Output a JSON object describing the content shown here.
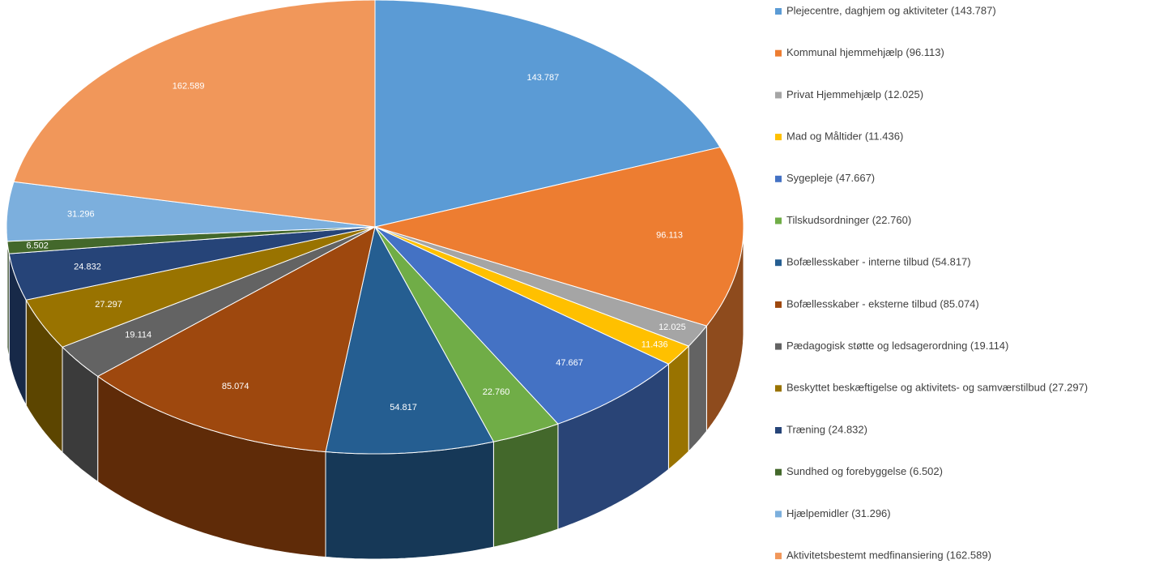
{
  "chart_data": {
    "type": "pie",
    "categories": [
      "Plejecentre, daghjem og aktiviteter (143.787)",
      "Kommunal hjemmehjælp (96.113)",
      "Privat Hjemmehjælp (12.025)",
      "Mad og Måltider (11.436)",
      "Sygepleje (47.667)",
      "Tilskudsordninger (22.760)",
      "Bofællesskaber - interne tilbud (54.817)",
      "Bofællesskaber - eksterne tilbud (85.074)",
      "Pædagogisk støtte og ledsagerordning (19.114)",
      "Beskyttet beskæftigelse og aktivitets- og samværstilbud (27.297)",
      "Træning (24.832)",
      "Sundhed og forebyggelse (6.502)",
      "Hjælpemidler (31.296)",
      "Aktivitetsbestemt medfinansiering (162.589)"
    ],
    "values": [
      143787,
      96113,
      12025,
      11436,
      47667,
      22760,
      54817,
      85074,
      19114,
      27297,
      24832,
      6502,
      31296,
      162589
    ],
    "value_labels": [
      "143.787",
      "96.113",
      "12.025",
      "11.436",
      "47.667",
      "22.760",
      "54.817",
      "85.074",
      "19.114",
      "27.297",
      "24.832",
      "6.502",
      "31.296",
      "162.589"
    ],
    "colors": [
      "#5b9bd5",
      "#ed7d31",
      "#a5a5a5",
      "#ffc000",
      "#4472c4",
      "#70ad47",
      "#255e91",
      "#9e480e",
      "#636363",
      "#997300",
      "#264478",
      "#43682b",
      "#7cafdd",
      "#f1975a"
    ],
    "legend": "right"
  }
}
